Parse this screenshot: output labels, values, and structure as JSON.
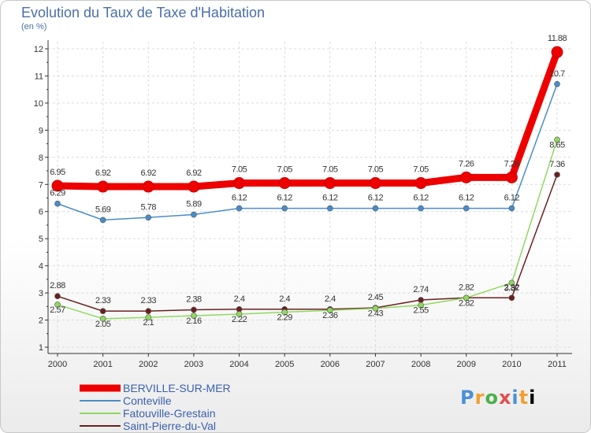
{
  "chart_data": {
    "type": "line",
    "title": "Evolution du Taux de Taxe d'Habitation",
    "subtitle": "(en %)",
    "x": [
      "2000",
      "2001",
      "2002",
      "2003",
      "2004",
      "2005",
      "2006",
      "2007",
      "2008",
      "2009",
      "2010",
      "2011"
    ],
    "yticks": [
      "1",
      "2",
      "3",
      "4",
      "5",
      "6",
      "7",
      "8",
      "9",
      "10",
      "11",
      "12"
    ],
    "ylim": [
      1,
      12
    ],
    "series": [
      {
        "name": "BERVILLE-SUR-MER",
        "color": "#ee0000",
        "values": [
          6.95,
          6.92,
          6.92,
          6.92,
          7.05,
          7.05,
          7.05,
          7.05,
          7.05,
          7.26,
          7.26,
          11.88
        ],
        "labels": [
          "6.95",
          "6.92",
          "6.92",
          "6.92",
          "7.05",
          "7.05",
          "7.05",
          "7.05",
          "7.05",
          "7.26",
          "7.26",
          "11.88"
        ]
      },
      {
        "name": "Conteville",
        "color": "#4a8cc8",
        "values": [
          6.29,
          5.69,
          5.78,
          5.89,
          6.12,
          6.12,
          6.12,
          6.12,
          6.12,
          6.12,
          6.12,
          10.7
        ],
        "labels": [
          "6.29",
          "5.69",
          "5.78",
          "5.89",
          "6.12",
          "6.12",
          "6.12",
          "6.12",
          "6.12",
          "6.12",
          "6.12",
          "10.7"
        ]
      },
      {
        "name": "Fatouville-Grestain",
        "color": "#90d860",
        "values": [
          2.57,
          2.05,
          2.1,
          2.16,
          2.22,
          2.29,
          2.36,
          2.43,
          2.55,
          2.82,
          3.37,
          8.65
        ],
        "labels": [
          "2.57",
          "2.05",
          "2.1",
          "2.16",
          "2.22",
          "2.29",
          "2.36",
          "2.43",
          "2.55",
          "2.82",
          "3.37",
          "8.65"
        ]
      },
      {
        "name": "Saint-Pierre-du-Val",
        "color": "#6a2020",
        "values": [
          2.88,
          2.33,
          2.33,
          2.38,
          2.4,
          2.4,
          2.4,
          2.45,
          2.74,
          2.82,
          2.82,
          7.36
        ],
        "labels": [
          "2.88",
          "2.33",
          "2.33",
          "2.38",
          "2.4",
          "2.4",
          "2.4",
          "2.45",
          "2.74",
          "2.82",
          "2.82",
          "7.36"
        ]
      }
    ]
  },
  "brand": {
    "letters": [
      "P",
      "r",
      "o",
      "x",
      "i",
      "t",
      "i"
    ]
  }
}
